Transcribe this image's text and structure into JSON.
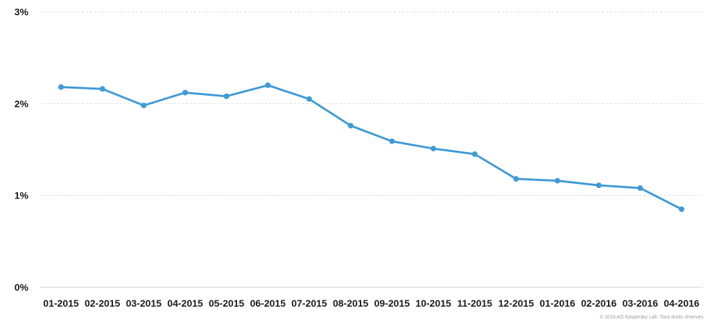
{
  "chart_data": {
    "type": "line",
    "title": "",
    "xlabel": "",
    "ylabel": "",
    "categories": [
      "01-2015",
      "02-2015",
      "03-2015",
      "04-2015",
      "05-2015",
      "06-2015",
      "07-2015",
      "08-2015",
      "09-2015",
      "10-2015",
      "11-2015",
      "12-2015",
      "01-2016",
      "02-2016",
      "03-2016",
      "04-2016"
    ],
    "series": [
      {
        "values": [
          2.18,
          2.16,
          1.98,
          2.12,
          2.08,
          2.2,
          2.05,
          1.76,
          1.59,
          1.51,
          1.45,
          1.18,
          1.16,
          1.11,
          1.08,
          0.85
        ]
      }
    ],
    "ylim": [
      0,
      3
    ],
    "yticks": [
      0,
      1,
      2,
      3
    ],
    "ytick_labels": [
      "0%",
      "1%",
      "2%",
      "3%"
    ],
    "grid": true,
    "legend": "none",
    "color": "#3f9bd6"
  },
  "credit": "© 2016 AO Kaspersky Lab. Tous droits réservés."
}
